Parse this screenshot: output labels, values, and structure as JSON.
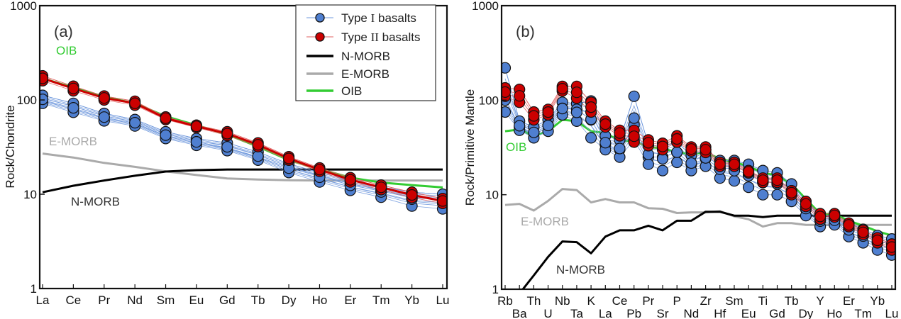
{
  "chart_data": [
    {
      "type": "line",
      "panel_label": "(a)",
      "title": "",
      "xlabel": "",
      "ylabel": "Rock/Chondrite",
      "yscale": "log",
      "ylim": [
        1,
        1000
      ],
      "yticks": [
        "1",
        "10",
        "100",
        "1000"
      ],
      "categories": [
        "La",
        "Ce",
        "Pr",
        "Nd",
        "Sm",
        "Eu",
        "Gd",
        "Tb",
        "Dy",
        "Ho",
        "Er",
        "Tm",
        "Yb",
        "Lu"
      ],
      "series": [
        {
          "name": "Type I basalts (upper)",
          "group": "type1",
          "values": [
            112,
            92,
            72,
            62,
            46,
            39,
            35,
            28,
            21,
            17,
            14,
            12,
            10.5,
            10
          ]
        },
        {
          "name": "Type I basalts (mid)",
          "group": "type1",
          "values": [
            100,
            82,
            65,
            57,
            42,
            36,
            31,
            25,
            19,
            15.5,
            12.5,
            10.8,
            9.2,
            8.8
          ]
        },
        {
          "name": "Type I basalts (lower)",
          "group": "type1",
          "values": [
            92,
            74,
            60,
            53,
            39,
            33,
            29,
            23,
            17,
            13.5,
            11,
            9.3,
            7.5,
            7
          ]
        },
        {
          "name": "Type II basalts (upper)",
          "group": "type2",
          "values": [
            180,
            140,
            110,
            97,
            66,
            54,
            46,
            35,
            25,
            19,
            15,
            12.5,
            10.5,
            9
          ]
        },
        {
          "name": "Type II basalts (lower)",
          "group": "type2",
          "values": [
            160,
            125,
            100,
            88,
            62,
            51,
            42,
            32,
            23,
            17.5,
            13.5,
            11.2,
            9.2,
            8
          ]
        },
        {
          "name": "N-MORB",
          "group": "nmorb",
          "values": [
            10.5,
            12.3,
            14,
            15.7,
            17.4,
            18,
            18.3,
            18.3,
            18.3,
            18.3,
            18.3,
            18.3,
            18.3,
            18.3
          ]
        },
        {
          "name": "E-MORB",
          "group": "emorb",
          "values": [
            27,
            24.5,
            21.5,
            19.5,
            17.5,
            16,
            14.7,
            14.3,
            14.1,
            14,
            14,
            14,
            14,
            14
          ]
        },
        {
          "name": "OIB",
          "group": "oib",
          "values": [
            170,
            135,
            108,
            92,
            67,
            54,
            43,
            32,
            23,
            18.5,
            15,
            13.3,
            12.5,
            11.8
          ]
        }
      ],
      "annotations": [
        {
          "text": "OIB",
          "color": "#33cc33",
          "near": "La"
        },
        {
          "text": "E-MORB",
          "color": "#aaaaaa",
          "near": "La"
        },
        {
          "text": "N-MORB",
          "color": "#222222",
          "near": "Ce"
        }
      ]
    },
    {
      "type": "line",
      "panel_label": "(b)",
      "title": "",
      "xlabel": "",
      "ylabel": "Rock/Primitive Mantle",
      "yscale": "log",
      "ylim": [
        1,
        1000
      ],
      "yticks": [
        "1",
        "10",
        "100",
        "1000"
      ],
      "categories": [
        "Rb",
        "Ba",
        "Th",
        "U",
        "Nb",
        "Ta",
        "K",
        "La",
        "Ce",
        "Pb",
        "Pr",
        "Sr",
        "P",
        "Nd",
        "Zr",
        "Hf",
        "Sm",
        "Eu",
        "Ti",
        "Gd",
        "Tb",
        "Dy",
        "Y",
        "Ho",
        "Er",
        "Tm",
        "Yb",
        "Lu"
      ],
      "series": [
        {
          "name": "Type I basalts (upper)",
          "group": "type1",
          "values": [
            220,
            60,
            52,
            62,
            95,
            92,
            98,
            42,
            38,
            110,
            34,
            32,
            36,
            26,
            30,
            23,
            23,
            21,
            18,
            17,
            13,
            8.5,
            6,
            6,
            5,
            4.3,
            3.7,
            3.4
          ]
        },
        {
          "name": "Type I basalts (mid)",
          "group": "type1",
          "values": [
            100,
            52,
            45,
            54,
            82,
            80,
            62,
            34,
            30,
            55,
            25,
            25,
            28,
            21,
            24,
            19,
            19,
            16,
            14,
            13,
            11,
            7,
            5.3,
            5.5,
            4.3,
            3.7,
            3.2,
            3
          ]
        },
        {
          "name": "Type I basalts (lower)",
          "group": "type1",
          "values": [
            75,
            48,
            40,
            47,
            70,
            60,
            40,
            30,
            25,
            38,
            21,
            18,
            22,
            18,
            20,
            15,
            14,
            12,
            10,
            10,
            8.5,
            6,
            4.6,
            4.8,
            3.6,
            3.1,
            2.6,
            2.3
          ]
        },
        {
          "name": "Type II basalts (upper)",
          "group": "type2",
          "values": [
            135,
            130,
            75,
            80,
            140,
            140,
            95,
            60,
            48,
            48,
            38,
            35,
            42,
            32,
            32,
            22,
            22,
            18,
            15,
            15,
            11,
            8.5,
            6.3,
            6.3,
            5,
            4.2,
            3.5,
            3
          ]
        },
        {
          "name": "Type II basalts (lower)",
          "group": "type2",
          "values": [
            110,
            95,
            62,
            70,
            125,
            105,
            75,
            52,
            42,
            36,
            33,
            30,
            36,
            29,
            28,
            20,
            20,
            17,
            13.5,
            13.5,
            10,
            7.5,
            5.5,
            5.8,
            4.6,
            3.8,
            3.1,
            2.6
          ]
        },
        {
          "name": "N-MORB",
          "group": "nmorb",
          "values": [
            0.56,
            0.9,
            1.4,
            2.2,
            3.2,
            3.15,
            2.4,
            3.6,
            4.2,
            4.2,
            4.7,
            4.2,
            5.3,
            5.3,
            6.6,
            6.6,
            6.0,
            6.0,
            5.8,
            6.0,
            6.0,
            6.0,
            6.0,
            6.0,
            6.0,
            6.0,
            6.0,
            6.0
          ]
        },
        {
          "name": "E-MORB",
          "group": "emorb",
          "values": [
            7.8,
            8.0,
            6.8,
            8.6,
            11.5,
            11.2,
            8.3,
            9.0,
            8.3,
            8.3,
            7.2,
            7.1,
            6.4,
            6.5,
            6.5,
            6.7,
            5.9,
            5.5,
            4.6,
            5.0,
            5.0,
            4.8,
            4.8,
            4.8,
            4.8,
            4.8,
            4.8,
            4.8
          ]
        },
        {
          "name": "OIB",
          "group": "oib",
          "values": [
            47,
            49,
            42,
            47,
            62,
            60,
            47,
            45,
            37,
            37,
            32,
            31,
            28,
            27,
            28,
            24,
            22,
            20,
            17,
            16,
            13,
            9,
            6.3,
            6.2,
            5.3,
            4.7,
            4.1,
            3.7
          ]
        }
      ],
      "annotations": [
        {
          "text": "OIB",
          "color": "#33cc33",
          "near": "Rb"
        },
        {
          "text": "E-MORB",
          "color": "#aaaaaa",
          "near": "Th"
        },
        {
          "text": "N-MORB",
          "color": "#222222",
          "near": "K"
        }
      ]
    }
  ],
  "legend": {
    "placement": "top-right of panel (a)",
    "items": [
      {
        "label_prefix": "Type ",
        "label_roman": "I",
        "label_suffix": " basalts",
        "kind": "marker",
        "group": "type1"
      },
      {
        "label_prefix": "Type ",
        "label_roman": "II",
        "label_suffix": " basalts",
        "kind": "marker",
        "group": "type2"
      },
      {
        "label": "N-MORB",
        "kind": "line",
        "group": "nmorb"
      },
      {
        "label": "E-MORB",
        "kind": "line",
        "group": "emorb"
      },
      {
        "label": "OIB",
        "kind": "line",
        "group": "oib"
      }
    ]
  },
  "colors": {
    "type1_fill": "#4f7fd0",
    "type1_line": "#6f98dd",
    "type2_fill": "#cc0000",
    "type2_line": "#e06060",
    "nmorb": "#000000",
    "emorb": "#aaaaaa",
    "oib": "#33cc33",
    "axis": "#111111"
  }
}
